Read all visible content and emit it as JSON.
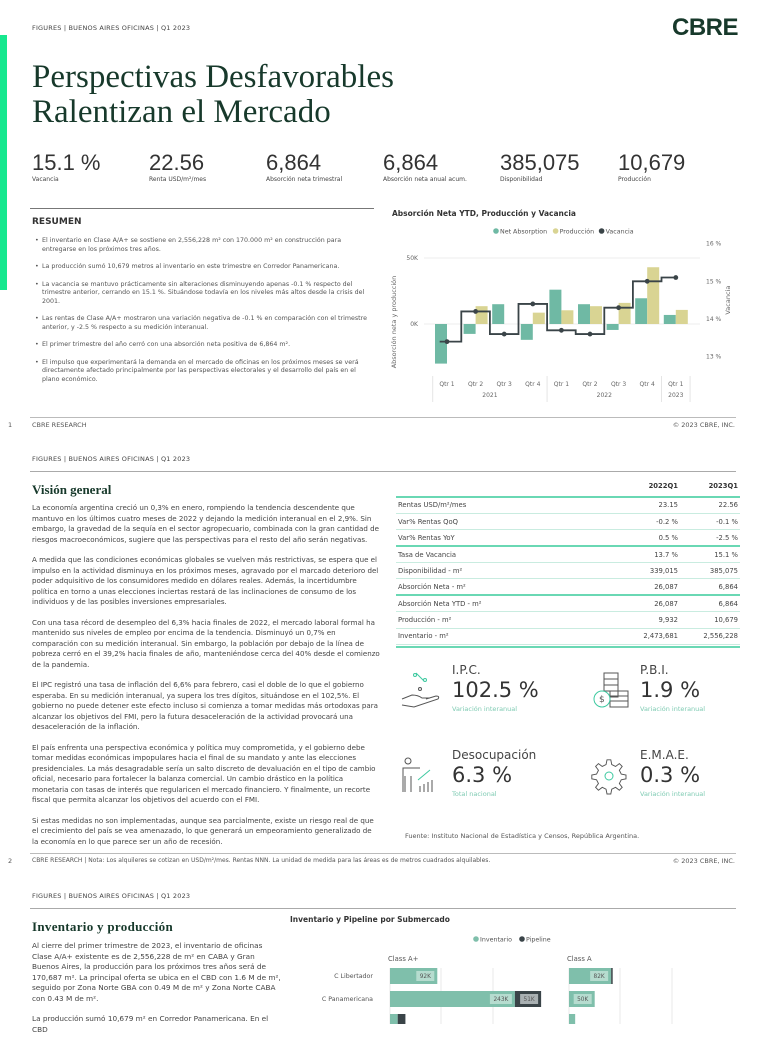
{
  "page1": {
    "header": "FIGURES  |  BUENOS AIRES OFICINAS  |  Q1 2023",
    "logo": "CBRE",
    "title_line1": "Perspectivas Desfavorables",
    "title_line2": "Ralentizan el Mercado",
    "stats": [
      {
        "value": "15.1 %",
        "label": "Vacancia"
      },
      {
        "value": "22.56",
        "label": "Renta USD/m²/mes"
      },
      {
        "value": "6,864",
        "label": "Absorción neta trimestral"
      },
      {
        "value": "6,864",
        "label": "Absorción neta anual acum."
      },
      {
        "value": "385,075",
        "label": "Disponibilidad"
      },
      {
        "value": "10,679",
        "label": "Producción"
      }
    ],
    "summary_title": "RESUMEN",
    "bullets": [
      "El inventario en Clase A/A+ se sostiene en 2,556,228 m² con 170.000 m² en construcción para entregarse en los próximos tres años.",
      "La producción sumó 10,679 metros al inventario en este trimestre en Corredor Panamericana.",
      "La vacancia se mantuvo prácticamente sin alteraciones disminuyendo apenas -0.1 % respecto del trimestre anterior, cerrando en 15.1 %. Situándose todavía en los niveles más altos desde la crisis del 2001.",
      "Las rentas de Clase A/A+ mostraron una variación negativa de -0.1 % en comparación con el trimestre anterior, y -2.5 % respecto a su medición interanual.",
      "El primer trimestre del año cerró con una absorción neta positiva de 6,864 m².",
      "El impulso que experimentará la demanda en el mercado de oficinas en los próximos meses se verá directamente afectado principalmente por las perspectivas electorales y el desarrollo del país en el plano económico."
    ],
    "footer_page": "1",
    "footer_left": "CBRE RESEARCH",
    "footer_right": "© 2023 CBRE, INC."
  },
  "chart_data": [
    {
      "type": "bar",
      "title": "Absorción Neta YTD, Producción y Vacancia",
      "categories": [
        "Qtr 1",
        "Qtr 2",
        "Qtr 3",
        "Qtr 4",
        "Qtr 1",
        "Qtr 2",
        "Qtr 3",
        "Qtr 4",
        "Qtr 1"
      ],
      "category_groups": [
        {
          "label": "2021",
          "count": 4
        },
        {
          "label": "2022",
          "count": 4
        },
        {
          "label": "2023",
          "count": 1
        }
      ],
      "ylabel": "Absorción neta y producción",
      "y2label": "Vacancia",
      "yticks": [
        "0K",
        "50K"
      ],
      "y2ticks": [
        "13 %",
        "14 %",
        "15 %",
        "16 %"
      ],
      "ylim": [
        -35000,
        60000
      ],
      "y2lim": [
        12.9,
        16.1
      ],
      "legend_placement": "top",
      "series": [
        {
          "name": "Net Absorption",
          "type": "bar",
          "color": "#6fb9a4",
          "values": [
            -30000,
            -7500,
            15000,
            -12000,
            26000,
            15000,
            -4500,
            19500,
            6864
          ]
        },
        {
          "name": "Producción",
          "type": "bar",
          "color": "#d9d493",
          "values": [
            0,
            13500,
            0,
            8600,
            10400,
            13500,
            16000,
            43000,
            10679
          ]
        },
        {
          "name": "Vacancia",
          "type": "step-line",
          "axis": "right",
          "color": "#3a4448",
          "values": [
            13.4,
            14.2,
            13.6,
            14.4,
            13.7,
            13.6,
            14.3,
            15.0,
            15.1
          ]
        }
      ]
    },
    {
      "type": "bar",
      "orientation": "horizontal",
      "stacked": true,
      "title": "Inventario y Pipeline por Submercado",
      "legend_placement": "top",
      "legend": [
        {
          "name": "Inventario",
          "color": "#7fbfab"
        },
        {
          "name": "Pipeline",
          "color": "#3a4448"
        }
      ],
      "panels": [
        "Class A+",
        "Class A"
      ],
      "categories": [
        "C Libertador",
        "C Panamericana",
        ""
      ],
      "series": [
        {
          "name": "Inventario",
          "panel": "Class A+",
          "values": [
            92000,
            243000,
            15000
          ],
          "labels": [
            "92K",
            "243K",
            ""
          ]
        },
        {
          "name": "Pipeline",
          "panel": "Class A+",
          "values": [
            0,
            51000,
            15000
          ],
          "labels": [
            "",
            "51K",
            ""
          ]
        },
        {
          "name": "Inventario",
          "panel": "Class A",
          "values": [
            82000,
            50000,
            12000
          ],
          "labels": [
            "82K",
            "50K",
            ""
          ]
        },
        {
          "name": "Pipeline",
          "panel": "Class A",
          "values": [
            3000,
            0,
            0
          ],
          "labels": [
            "",
            "",
            ""
          ]
        }
      ]
    }
  ],
  "page2": {
    "header": "FIGURES  |  BUENOS AIRES OFICINAS  |  Q1 2023",
    "section_title": "Visión general",
    "paragraphs": [
      "La economía argentina creció un 0,3% en enero, rompiendo la tendencia descendente que mantuvo en los últimos cuatro meses de 2022 y dejando la medición interanual en el 2,9%. Sin embargo, la gravedad de la sequía en el sector agropecuario, combinada con la gran cantidad de riesgos macroeconómicos, sugiere que las perspectivas para el resto del año serán negativas.",
      "A medida que las condiciones económicas globales se vuelven más restrictivas, se espera que el impulso en la actividad disminuya en los próximos meses, agravado por el marcado deterioro del poder adquisitivo de los consumidores medido en dólares reales. Además, la incertidumbre política en torno a unas elecciones inciertas restará de las inclinaciones de consumo de los individuos y de las posibles inversiones empresariales.",
      "Con una tasa récord de desempleo del 6,3% hacia finales de 2022, el mercado laboral formal ha mantenido sus niveles de empleo por encima de la tendencia. Disminuyó un 0,7% en comparación con su medición interanual. Sin embargo, la población por debajo de la línea de pobreza cerró en el 39,2% hacia finales de año, manteniéndose cerca del 40% desde el comienzo de la pandemia.",
      "El IPC registró una tasa de inflación del 6,6% para febrero, casi el doble de lo que el gobierno esperaba. En su medición interanual, ya supera los tres dígitos, situándose en el 102,5%. El gobierno no puede detener este efecto incluso si comienza a tomar medidas más ortodoxas para alcanzar los objetivos del FMI, pero la futura desaceleración de la actividad provocará una desaceleración de la inflación.",
      "El país enfrenta una perspectiva económica y política muy comprometida, y el gobierno debe tomar medidas económicas impopulares hacia el final de su mandato y ante las elecciones presidenciales. La más desagradable sería un salto discreto de devaluación en el tipo de cambio oficial, necesario para fortalecer la balanza comercial. Un cambio drástico en la política monetaria con tasas de interés que regularicen el mercado financiero. Y finalmente, un recorte fiscal que permita alcanzar los objetivos del acuerdo con el FMI.",
      "Si estas medidas no son implementadas, aunque sea parcialmente, existe un riesgo real de que el crecimiento del país se vea amenazado, lo que generará un empeoramiento generalizado de la economía en lo que parece ser un año de recesión."
    ],
    "table": {
      "headers": [
        "",
        "2022Q1",
        "2023Q1"
      ],
      "rows": [
        [
          "Rentas USD/m²/mes",
          "23.15",
          "22.56"
        ],
        [
          "Var% Rentas QoQ",
          "-0.2 %",
          "-0.1 %"
        ],
        [
          "Var% Rentas YoY",
          "0.5 %",
          "-2.5 %"
        ],
        [
          "Tasa de Vacancia",
          "13.7 %",
          "15.1 %"
        ],
        [
          "Disponibilidad - m²",
          "339,015",
          "385,075"
        ],
        [
          "Absorción Neta - m²",
          "26,087",
          "6,864"
        ],
        [
          "Absorción Neta YTD - m²",
          "26,087",
          "6,864"
        ],
        [
          "Producción - m²",
          "9,932",
          "10,679"
        ],
        [
          "Inventario - m²",
          "2,473,681",
          "2,556,228"
        ]
      ]
    },
    "indicators": [
      {
        "title": "I.P.C.",
        "value": "102.5 %",
        "sub": "Variación interanual",
        "icon": "hand-percent-icon"
      },
      {
        "title": "P.B.I.",
        "value": "1.9 %",
        "sub": "Variación interanual",
        "icon": "coins-stack-icon"
      },
      {
        "title": "Desocupación",
        "value": "6.3 %",
        "sub": "Total nacional",
        "icon": "person-chart-icon"
      },
      {
        "title": "E.M.A.E.",
        "value": "0.3 %",
        "sub": "Variación interanual",
        "icon": "gear-icon"
      }
    ],
    "source": "Fuente: Instituto Nacional de Estadística y Censos, República Argentina.",
    "footer_page": "2",
    "footer_left": "CBRE RESEARCH | Nota: Los alquileres se cotizan en USD/m²/mes. Rentas NNN. La unidad de medida para las áreas es de metros cuadrados alquilables.",
    "footer_right": "© 2023 CBRE, INC."
  },
  "page3": {
    "header": "FIGURES  |  BUENOS AIRES OFICINAS  |  Q1 2023",
    "section_title": "Inventario y producción",
    "paragraphs": [
      "Al cierre del primer trimestre de 2023, el inventario de oficinas Clase A/A+ existente es de 2,556,228 de m² en CABA y Gran Buenos Aires, la producción para los próximos tres años será de 170,687 m². La principal oferta se ubica en el CBD con 1.6 M de m², seguido por Zona Norte GBA con 0.49 M de m² y Zona Norte CABA con 0.43 M de m².",
      "La producción sumó 10,679 m² en Corredor Panamericana. En el CBD"
    ]
  },
  "colors": {
    "brand_green": "#17392b",
    "accent": "#17e88f",
    "teal": "#6fb9a4",
    "sand": "#d9d493",
    "dark": "#3a4448"
  }
}
